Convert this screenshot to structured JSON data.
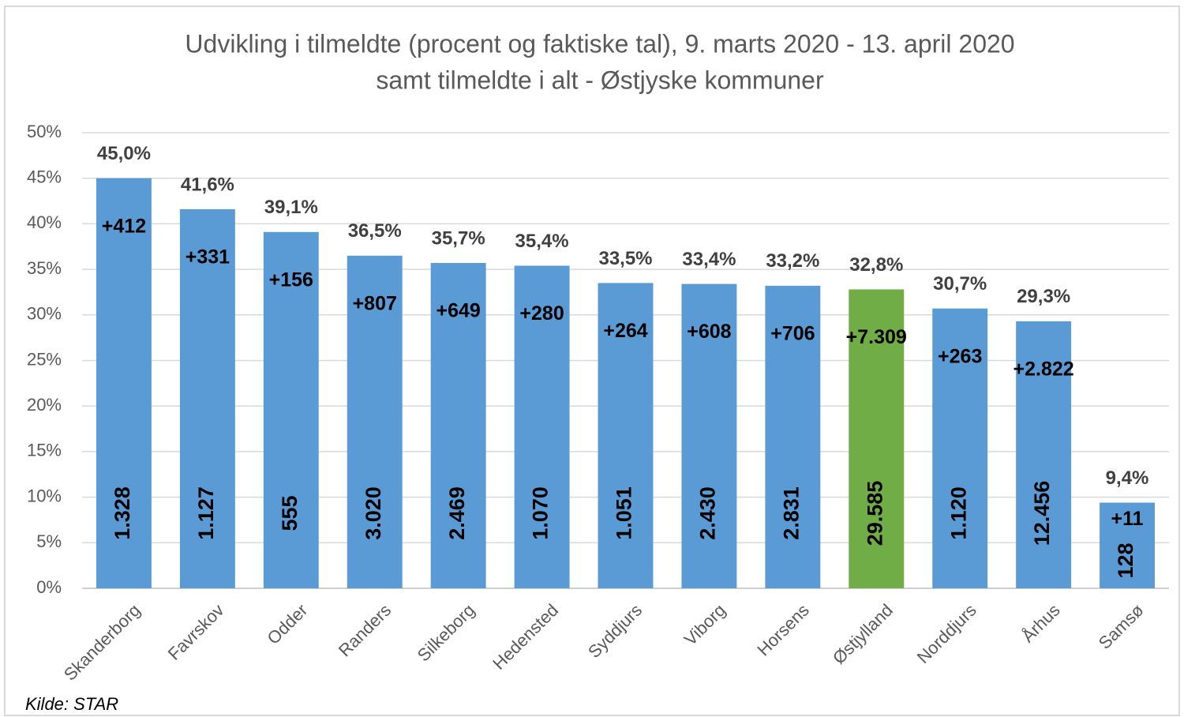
{
  "chart_data": {
    "type": "bar",
    "title": "Udvikling i tilmeldte (procent og faktiske tal), 9. marts 2020 - 13. april 2020",
    "subtitle": "samt tilmeldte i alt - Østjyske kommuner",
    "source": "Kilde: STAR",
    "categories": [
      "Skanderborg",
      "Favrskov",
      "Odder",
      "Randers",
      "Silkeborg",
      "Hedensted",
      "Syddjurs",
      "Viborg",
      "Horsens",
      "Østjylland",
      "Norddjurs",
      "Århus",
      "Samsø"
    ],
    "values": [
      45.0,
      41.6,
      39.1,
      36.5,
      35.7,
      35.4,
      33.5,
      33.4,
      33.2,
      32.8,
      30.7,
      29.3,
      9.4
    ],
    "value_labels": [
      "45,0%",
      "41,6%",
      "39,1%",
      "36,5%",
      "35,7%",
      "35,4%",
      "33,5%",
      "33,4%",
      "33,2%",
      "32,8%",
      "30,7%",
      "29,3%",
      "9,4%"
    ],
    "increase_labels": [
      "+412",
      "+331",
      "+156",
      "+807",
      "+649",
      "+280",
      "+264",
      "+608",
      "+706",
      "+7.309",
      "+263",
      "+2.822",
      "+11"
    ],
    "total_labels": [
      "1.328",
      "1.127",
      "555",
      "3.020",
      "2.469",
      "1.070",
      "1.051",
      "2.430",
      "2.831",
      "29.585",
      "1.120",
      "12.456",
      "128"
    ],
    "colors": [
      "#5b9bd5",
      "#5b9bd5",
      "#5b9bd5",
      "#5b9bd5",
      "#5b9bd5",
      "#5b9bd5",
      "#5b9bd5",
      "#5b9bd5",
      "#5b9bd5",
      "#70ad47",
      "#5b9bd5",
      "#5b9bd5",
      "#5b9bd5"
    ],
    "ylim": [
      0,
      50
    ],
    "yticks": [
      {
        "value": 0,
        "label": "0%"
      },
      {
        "value": 5,
        "label": "5%"
      },
      {
        "value": 10,
        "label": "10%"
      },
      {
        "value": 15,
        "label": "15%"
      },
      {
        "value": 20,
        "label": "20%"
      },
      {
        "value": 25,
        "label": "25%"
      },
      {
        "value": 30,
        "label": "30%"
      },
      {
        "value": 35,
        "label": "35%"
      },
      {
        "value": 40,
        "label": "40%"
      },
      {
        "value": 45,
        "label": "45%"
      },
      {
        "value": 50,
        "label": "50%"
      }
    ],
    "grid": true
  }
}
